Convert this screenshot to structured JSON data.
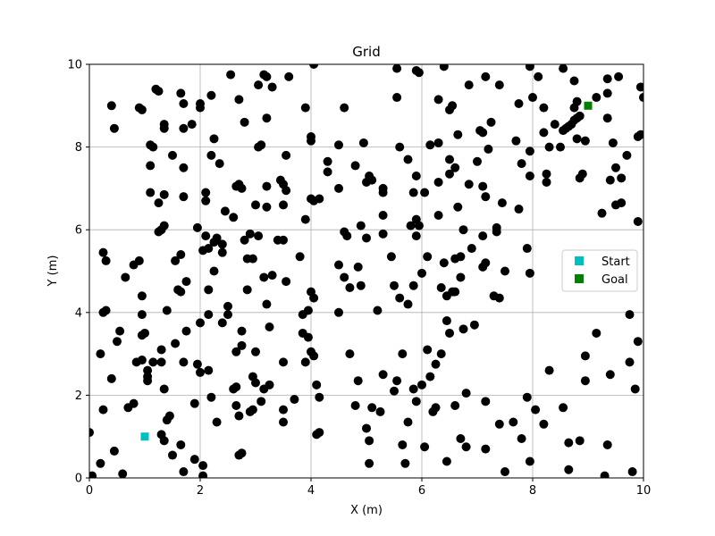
{
  "chart_data": {
    "type": "scatter",
    "title": "Grid",
    "xlabel": "X (m)",
    "ylabel": "Y (m)",
    "xlim": [
      0,
      10
    ],
    "ylim": [
      0,
      10
    ],
    "xticks": [
      0,
      2,
      4,
      6,
      8,
      10
    ],
    "yticks": [
      0,
      2,
      4,
      6,
      8,
      10
    ],
    "grid": true,
    "legend_placement": "center-right",
    "legend": [
      {
        "label": "Start",
        "color": "#00bfbf",
        "marker": "square"
      },
      {
        "label": "Goal",
        "color": "#008000",
        "marker": "square"
      }
    ],
    "start": {
      "x": 1.0,
      "y": 1.0
    },
    "goal": {
      "x": 9.0,
      "y": 9.0
    },
    "obstacle_color": "#000000",
    "obstacles": [
      [
        0.0,
        1.1
      ],
      [
        0.05,
        0.05
      ],
      [
        0.2,
        0.35
      ],
      [
        0.2,
        3.0
      ],
      [
        0.25,
        1.65
      ],
      [
        0.25,
        4.0
      ],
      [
        0.3,
        4.05
      ],
      [
        0.25,
        5.45
      ],
      [
        0.3,
        5.25
      ],
      [
        0.4,
        2.4
      ],
      [
        0.4,
        9.0
      ],
      [
        0.45,
        8.45
      ],
      [
        0.45,
        0.65
      ],
      [
        0.5,
        3.3
      ],
      [
        0.55,
        3.55
      ],
      [
        0.6,
        0.1
      ],
      [
        0.65,
        4.85
      ],
      [
        0.7,
        1.7
      ],
      [
        0.8,
        1.8
      ],
      [
        0.8,
        5.15
      ],
      [
        0.85,
        2.8
      ],
      [
        0.9,
        5.25
      ],
      [
        0.9,
        8.95
      ],
      [
        0.95,
        8.9
      ],
      [
        0.95,
        4.4
      ],
      [
        0.95,
        3.95
      ],
      [
        0.95,
        3.45
      ],
      [
        0.95,
        2.85
      ],
      [
        1.0,
        3.5
      ],
      [
        1.05,
        2.6
      ],
      [
        1.05,
        2.45
      ],
      [
        1.05,
        2.35
      ],
      [
        1.1,
        6.9
      ],
      [
        1.1,
        7.55
      ],
      [
        1.1,
        8.05
      ],
      [
        1.15,
        8.0
      ],
      [
        1.15,
        2.8
      ],
      [
        1.2,
        9.4
      ],
      [
        1.25,
        9.35
      ],
      [
        1.25,
        5.95
      ],
      [
        1.25,
        6.65
      ],
      [
        1.3,
        6.0
      ],
      [
        1.35,
        8.55
      ],
      [
        1.35,
        8.45
      ],
      [
        1.35,
        6.85
      ],
      [
        1.35,
        6.1
      ],
      [
        1.4,
        4.05
      ],
      [
        1.3,
        2.8
      ],
      [
        1.3,
        3.1
      ],
      [
        1.35,
        2.15
      ],
      [
        1.3,
        1.05
      ],
      [
        1.35,
        0.9
      ],
      [
        1.4,
        1.4
      ],
      [
        1.45,
        1.5
      ],
      [
        1.5,
        0.55
      ],
      [
        1.5,
        7.8
      ],
      [
        1.55,
        3.25
      ],
      [
        1.55,
        5.25
      ],
      [
        1.6,
        4.55
      ],
      [
        1.65,
        5.4
      ],
      [
        1.65,
        9.3
      ],
      [
        1.7,
        9.05
      ],
      [
        1.7,
        8.45
      ],
      [
        1.65,
        4.5
      ],
      [
        1.7,
        6.8
      ],
      [
        1.7,
        7.5
      ],
      [
        1.7,
        2.8
      ],
      [
        1.65,
        0.8
      ],
      [
        1.7,
        0.15
      ],
      [
        1.75,
        3.55
      ],
      [
        1.75,
        4.75
      ],
      [
        1.85,
        8.55
      ],
      [
        1.9,
        1.8
      ],
      [
        1.9,
        0.45
      ],
      [
        1.95,
        2.75
      ],
      [
        1.95,
        6.05
      ],
      [
        2.0,
        9.05
      ],
      [
        2.0,
        8.95
      ],
      [
        2.0,
        2.55
      ],
      [
        2.0,
        3.75
      ],
      [
        2.05,
        5.5
      ],
      [
        2.05,
        0.05
      ],
      [
        2.05,
        0.3
      ],
      [
        2.1,
        6.9
      ],
      [
        2.1,
        6.7
      ],
      [
        2.1,
        5.85
      ],
      [
        2.15,
        5.55
      ],
      [
        2.15,
        4.55
      ],
      [
        2.15,
        3.95
      ],
      [
        2.15,
        2.6
      ],
      [
        2.2,
        1.95
      ],
      [
        2.2,
        9.25
      ],
      [
        2.2,
        7.8
      ],
      [
        2.25,
        8.2
      ],
      [
        2.25,
        5.7
      ],
      [
        2.3,
        5.8
      ],
      [
        2.25,
        5.0
      ],
      [
        2.3,
        1.35
      ],
      [
        2.35,
        7.6
      ],
      [
        2.4,
        5.45
      ],
      [
        2.4,
        5.65
      ],
      [
        2.4,
        3.75
      ],
      [
        2.45,
        6.45
      ],
      [
        2.5,
        3.95
      ],
      [
        2.5,
        4.15
      ],
      [
        2.55,
        9.75
      ],
      [
        2.6,
        6.3
      ],
      [
        2.65,
        7.05
      ],
      [
        2.7,
        7.1
      ],
      [
        2.65,
        3.05
      ],
      [
        2.6,
        2.15
      ],
      [
        2.65,
        2.2
      ],
      [
        2.65,
        1.75
      ],
      [
        2.7,
        1.5
      ],
      [
        2.7,
        0.55
      ],
      [
        2.75,
        0.6
      ],
      [
        2.7,
        9.15
      ],
      [
        2.8,
        8.6
      ],
      [
        2.75,
        7.0
      ],
      [
        2.75,
        3.55
      ],
      [
        2.75,
        3.2
      ],
      [
        2.8,
        5.75
      ],
      [
        2.85,
        4.55
      ],
      [
        2.85,
        5.3
      ],
      [
        2.9,
        5.9
      ],
      [
        2.9,
        1.6
      ],
      [
        2.95,
        1.65
      ],
      [
        2.95,
        2.45
      ],
      [
        2.95,
        5.3
      ],
      [
        3.0,
        6.6
      ],
      [
        3.0,
        3.05
      ],
      [
        3.0,
        2.3
      ],
      [
        3.05,
        9.5
      ],
      [
        3.05,
        5.85
      ],
      [
        3.05,
        8.0
      ],
      [
        3.1,
        8.05
      ],
      [
        3.1,
        1.85
      ],
      [
        3.15,
        2.15
      ],
      [
        3.15,
        4.85
      ],
      [
        3.15,
        9.75
      ],
      [
        3.2,
        9.7
      ],
      [
        3.2,
        7.05
      ],
      [
        3.2,
        6.55
      ],
      [
        3.2,
        8.7
      ],
      [
        3.2,
        4.2
      ],
      [
        3.25,
        2.25
      ],
      [
        3.25,
        3.65
      ],
      [
        3.3,
        9.45
      ],
      [
        3.3,
        4.9
      ],
      [
        3.4,
        5.75
      ],
      [
        3.45,
        7.2
      ],
      [
        3.5,
        7.1
      ],
      [
        3.5,
        6.6
      ],
      [
        3.5,
        5.75
      ],
      [
        3.5,
        2.8
      ],
      [
        3.5,
        1.35
      ],
      [
        3.5,
        1.65
      ],
      [
        3.55,
        7.8
      ],
      [
        3.55,
        6.95
      ],
      [
        3.55,
        4.75
      ],
      [
        3.6,
        9.7
      ],
      [
        3.7,
        1.9
      ],
      [
        3.8,
        5.35
      ],
      [
        3.85,
        3.95
      ],
      [
        3.85,
        3.5
      ],
      [
        3.9,
        8.95
      ],
      [
        3.9,
        6.25
      ],
      [
        3.9,
        2.8
      ],
      [
        3.95,
        4.05
      ],
      [
        3.95,
        3.4
      ],
      [
        4.0,
        8.25
      ],
      [
        4.0,
        8.15
      ],
      [
        4.0,
        3.05
      ],
      [
        4.0,
        6.75
      ],
      [
        4.0,
        4.5
      ],
      [
        4.05,
        4.35
      ],
      [
        4.05,
        6.7
      ],
      [
        4.05,
        10.0
      ],
      [
        4.05,
        2.95
      ],
      [
        4.1,
        1.05
      ],
      [
        4.15,
        1.1
      ],
      [
        4.1,
        2.25
      ],
      [
        4.15,
        1.95
      ],
      [
        4.15,
        6.75
      ],
      [
        4.3,
        7.65
      ],
      [
        4.3,
        7.4
      ],
      [
        4.5,
        8.05
      ],
      [
        4.5,
        7.0
      ],
      [
        4.5,
        5.15
      ],
      [
        4.5,
        4.0
      ],
      [
        4.6,
        8.95
      ],
      [
        4.6,
        5.95
      ],
      [
        4.6,
        4.85
      ],
      [
        4.65,
        5.85
      ],
      [
        4.7,
        3.0
      ],
      [
        4.7,
        4.6
      ],
      [
        4.8,
        7.55
      ],
      [
        4.8,
        1.75
      ],
      [
        4.85,
        5.1
      ],
      [
        4.85,
        2.35
      ],
      [
        4.9,
        6.1
      ],
      [
        4.9,
        4.65
      ],
      [
        4.95,
        8.1
      ],
      [
        5.0,
        7.15
      ],
      [
        5.0,
        5.8
      ],
      [
        5.0,
        1.2
      ],
      [
        5.05,
        7.3
      ],
      [
        5.05,
        0.9
      ],
      [
        5.05,
        0.35
      ],
      [
        5.1,
        7.2
      ],
      [
        5.1,
        1.7
      ],
      [
        5.2,
        4.05
      ],
      [
        5.25,
        1.6
      ],
      [
        5.3,
        7.0
      ],
      [
        5.3,
        6.9
      ],
      [
        5.3,
        6.35
      ],
      [
        5.3,
        5.9
      ],
      [
        5.3,
        2.5
      ],
      [
        5.45,
        5.35
      ],
      [
        5.5,
        4.65
      ],
      [
        5.5,
        2.1
      ],
      [
        5.55,
        9.9
      ],
      [
        5.55,
        9.2
      ],
      [
        5.55,
        2.35
      ],
      [
        5.6,
        8.0
      ],
      [
        5.6,
        4.35
      ],
      [
        5.65,
        3.0
      ],
      [
        5.65,
        0.8
      ],
      [
        5.7,
        0.35
      ],
      [
        5.75,
        7.7
      ],
      [
        5.75,
        4.2
      ],
      [
        5.75,
        1.35
      ],
      [
        5.8,
        6.1
      ],
      [
        5.85,
        6.9
      ],
      [
        5.85,
        4.65
      ],
      [
        5.85,
        2.15
      ],
      [
        5.9,
        9.85
      ],
      [
        5.9,
        7.3
      ],
      [
        5.9,
        6.25
      ],
      [
        5.9,
        5.85
      ],
      [
        5.9,
        1.85
      ],
      [
        5.95,
        9.8
      ],
      [
        5.95,
        6.1
      ],
      [
        6.0,
        4.95
      ],
      [
        6.0,
        2.25
      ],
      [
        6.05,
        6.9
      ],
      [
        6.05,
        0.75
      ],
      [
        6.1,
        5.35
      ],
      [
        6.1,
        3.1
      ],
      [
        6.15,
        8.05
      ],
      [
        6.15,
        2.45
      ],
      [
        6.2,
        1.6
      ],
      [
        6.25,
        2.75
      ],
      [
        6.25,
        1.7
      ],
      [
        6.3,
        9.15
      ],
      [
        6.3,
        8.1
      ],
      [
        6.3,
        7.15
      ],
      [
        6.3,
        6.35
      ],
      [
        6.35,
        4.6
      ],
      [
        6.35,
        3.0
      ],
      [
        6.4,
        9.95
      ],
      [
        6.4,
        5.2
      ],
      [
        6.45,
        4.4
      ],
      [
        6.45,
        3.8
      ],
      [
        6.45,
        0.4
      ],
      [
        6.5,
        8.9
      ],
      [
        6.5,
        7.7
      ],
      [
        6.5,
        7.35
      ],
      [
        6.5,
        3.5
      ],
      [
        6.55,
        9.0
      ],
      [
        6.55,
        4.5
      ],
      [
        6.6,
        7.5
      ],
      [
        6.6,
        5.3
      ],
      [
        6.6,
        1.75
      ],
      [
        6.6,
        4.5
      ],
      [
        6.65,
        6.55
      ],
      [
        6.65,
        8.3
      ],
      [
        6.7,
        5.35
      ],
      [
        6.7,
        4.85
      ],
      [
        6.7,
        0.95
      ],
      [
        6.75,
        6.0
      ],
      [
        6.75,
        3.6
      ],
      [
        6.8,
        2.05
      ],
      [
        6.8,
        0.75
      ],
      [
        6.85,
        7.1
      ],
      [
        6.85,
        9.5
      ],
      [
        6.9,
        5.55
      ],
      [
        6.95,
        3.7
      ],
      [
        7.0,
        7.65
      ],
      [
        7.05,
        8.4
      ],
      [
        7.1,
        8.35
      ],
      [
        7.1,
        7.05
      ],
      [
        7.1,
        5.85
      ],
      [
        7.1,
        5.1
      ],
      [
        7.15,
        6.8
      ],
      [
        7.15,
        5.2
      ],
      [
        7.15,
        1.85
      ],
      [
        7.15,
        0.7
      ],
      [
        7.15,
        9.7
      ],
      [
        7.2,
        7.95
      ],
      [
        7.25,
        8.6
      ],
      [
        7.3,
        4.4
      ],
      [
        7.35,
        6.05
      ],
      [
        7.35,
        5.95
      ],
      [
        7.4,
        4.35
      ],
      [
        7.45,
        6.65
      ],
      [
        7.4,
        9.5
      ],
      [
        7.4,
        1.3
      ],
      [
        7.5,
        5.0
      ],
      [
        7.5,
        0.15
      ],
      [
        7.65,
        1.35
      ],
      [
        7.7,
        8.15
      ],
      [
        7.75,
        6.5
      ],
      [
        7.75,
        9.05
      ],
      [
        7.8,
        7.6
      ],
      [
        7.8,
        0.95
      ],
      [
        7.9,
        1.95
      ],
      [
        7.9,
        5.55
      ],
      [
        7.95,
        7.3
      ],
      [
        7.95,
        7.9
      ],
      [
        7.95,
        4.95
      ],
      [
        7.95,
        0.4
      ],
      [
        8.0,
        9.2
      ],
      [
        7.95,
        9.95
      ],
      [
        8.05,
        1.65
      ],
      [
        8.1,
        9.7
      ],
      [
        8.2,
        8.35
      ],
      [
        8.2,
        8.95
      ],
      [
        8.25,
        7.15
      ],
      [
        8.25,
        7.35
      ],
      [
        8.3,
        8.0
      ],
      [
        8.2,
        1.3
      ],
      [
        8.3,
        2.6
      ],
      [
        8.4,
        8.55
      ],
      [
        8.5,
        8.0
      ],
      [
        8.55,
        9.9
      ],
      [
        8.55,
        1.7
      ],
      [
        8.65,
        0.85
      ],
      [
        8.65,
        0.2
      ],
      [
        8.75,
        9.6
      ],
      [
        8.75,
        8.95
      ],
      [
        8.8,
        9.1
      ],
      [
        8.8,
        8.2
      ],
      [
        8.85,
        7.25
      ],
      [
        8.9,
        7.35
      ],
      [
        8.85,
        0.9
      ],
      [
        8.95,
        8.15
      ],
      [
        8.95,
        2.95
      ],
      [
        8.95,
        2.35
      ],
      [
        9.15,
        9.2
      ],
      [
        9.15,
        3.5
      ],
      [
        9.25,
        6.4
      ],
      [
        9.35,
        9.3
      ],
      [
        9.35,
        9.65
      ],
      [
        9.35,
        8.7
      ],
      [
        9.4,
        7.2
      ],
      [
        9.4,
        2.5
      ],
      [
        9.35,
        0.8
      ],
      [
        9.45,
        8.1
      ],
      [
        9.5,
        7.5
      ],
      [
        9.5,
        6.6
      ],
      [
        9.55,
        9.7
      ],
      [
        9.6,
        6.65
      ],
      [
        9.6,
        7.25
      ],
      [
        9.7,
        7.8
      ],
      [
        9.75,
        3.95
      ],
      [
        9.75,
        2.8
      ],
      [
        9.8,
        0.15
      ],
      [
        9.85,
        2.15
      ],
      [
        9.9,
        3.3
      ],
      [
        9.9,
        6.2
      ],
      [
        9.9,
        8.25
      ],
      [
        9.95,
        8.3
      ],
      [
        9.95,
        9.45
      ],
      [
        10.0,
        9.2
      ],
      [
        9.3,
        0.05
      ],
      [
        8.55,
        8.4
      ],
      [
        8.6,
        8.45
      ],
      [
        8.65,
        8.5
      ],
      [
        8.7,
        8.55
      ],
      [
        8.75,
        8.65
      ],
      [
        8.8,
        8.7
      ],
      [
        8.85,
        8.75
      ]
    ]
  }
}
